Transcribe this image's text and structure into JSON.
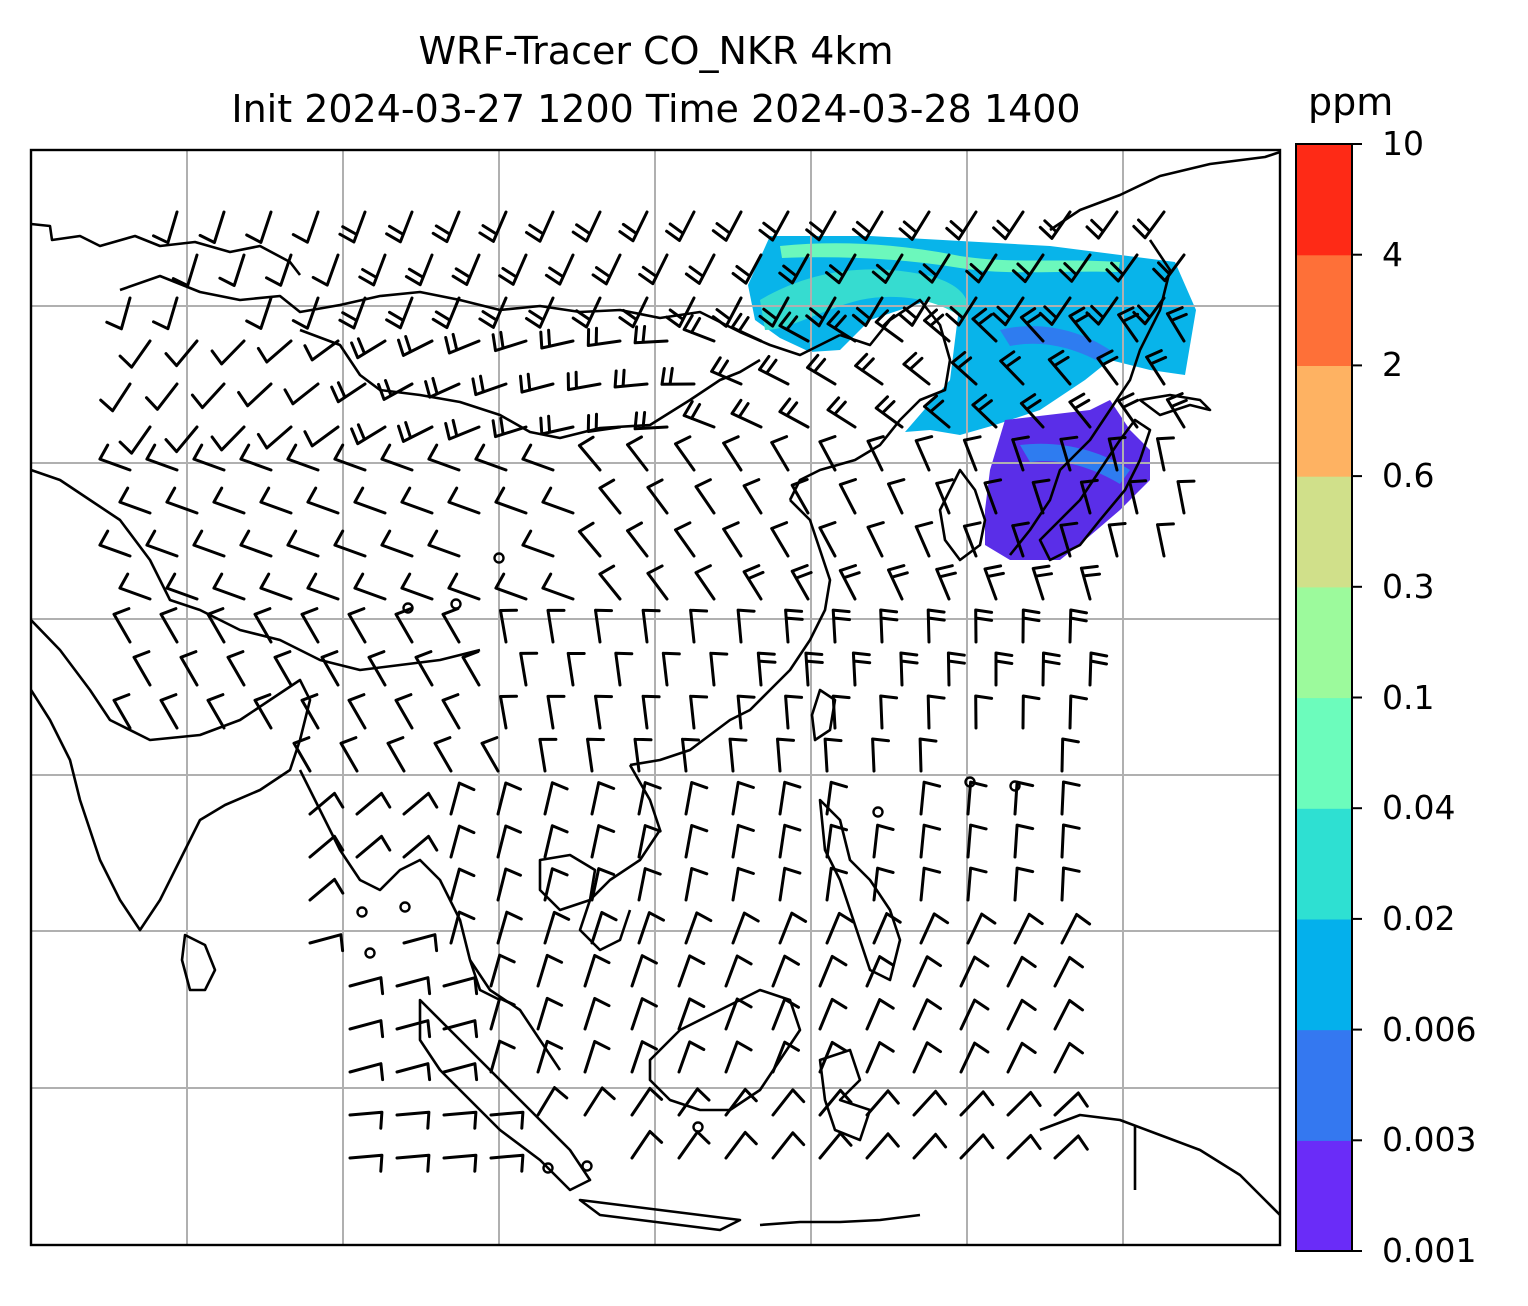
{
  "title": {
    "line1": "WRF-Tracer CO_NKR 4km",
    "line2": "Init 2024-03-27 1200 Time 2024-03-28 1400"
  },
  "colorbar": {
    "units": "ppm",
    "ticks": [
      "0.001",
      "0.003",
      "0.006",
      "0.02",
      "0.04",
      "0.1",
      "0.3",
      "0.6",
      "2",
      "4",
      "10"
    ],
    "colors": [
      "#6a2cf8",
      "#3478f0",
      "#04b0ec",
      "#2ee0d2",
      "#6cfcbc",
      "#9cfa9c",
      "#d0e08a",
      "#feb262",
      "#fe7038",
      "#fe2a16"
    ]
  },
  "map": {
    "land_outline_color": "#000000",
    "gridline_color": "#b0b0b0",
    "plume_colors": [
      "#5a2ee8",
      "#2e7cf0",
      "#08b4ea",
      "#36dcd0",
      "#6cf8bc"
    ]
  }
}
